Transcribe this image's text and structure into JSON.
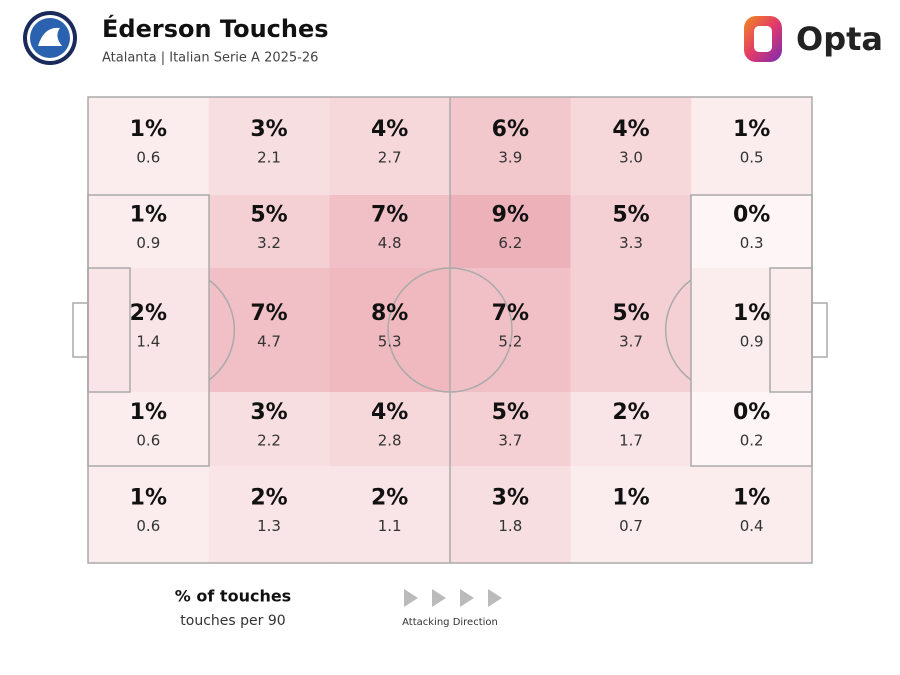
{
  "chart_data": {
    "type": "pitch_heatmap",
    "title": "Éderson Touches",
    "subtitle": "Atalanta | Italian Serie A 2025-26",
    "brand": "Opta",
    "legend": {
      "primary": "% of touches",
      "secondary": "touches per 90"
    },
    "direction_label": "Attacking Direction",
    "color": "#e07a86",
    "values": [
      [
        1,
        3,
        4,
        6,
        4,
        1
      ],
      [
        1,
        5,
        7,
        9,
        5,
        0
      ],
      [
        2,
        7,
        8,
        7,
        5,
        1
      ],
      [
        1,
        3,
        4,
        5,
        2,
        0
      ],
      [
        1,
        2,
        2,
        3,
        1,
        1
      ]
    ],
    "value_labels": [
      [
        "1%",
        "3%",
        "4%",
        "6%",
        "4%",
        "1%"
      ],
      [
        "1%",
        "5%",
        "7%",
        "9%",
        "5%",
        "0%"
      ],
      [
        "2%",
        "7%",
        "8%",
        "7%",
        "5%",
        "1%"
      ],
      [
        "1%",
        "3%",
        "4%",
        "5%",
        "2%",
        "0%"
      ],
      [
        "1%",
        "2%",
        "2%",
        "3%",
        "1%",
        "1%"
      ]
    ],
    "per90": [
      [
        0.6,
        2.1,
        2.7,
        3.9,
        3.0,
        0.5
      ],
      [
        0.9,
        3.2,
        4.8,
        6.2,
        3.3,
        0.3
      ],
      [
        1.4,
        4.7,
        5.3,
        5.2,
        3.7,
        0.9
      ],
      [
        0.6,
        2.2,
        2.8,
        3.7,
        1.7,
        0.2
      ],
      [
        0.6,
        1.3,
        1.1,
        1.8,
        0.7,
        0.4
      ]
    ],
    "per90_labels": [
      [
        "0.6",
        "2.1",
        "2.7",
        "3.9",
        "3.0",
        "0.5"
      ],
      [
        "0.9",
        "3.2",
        "4.8",
        "6.2",
        "3.3",
        "0.3"
      ],
      [
        "1.4",
        "4.7",
        "5.3",
        "5.2",
        "3.7",
        "0.9"
      ],
      [
        "0.6",
        "2.2",
        "2.8",
        "3.7",
        "1.7",
        "0.2"
      ],
      [
        "0.6",
        "1.3",
        "1.1",
        "1.8",
        "0.7",
        "0.4"
      ]
    ]
  }
}
